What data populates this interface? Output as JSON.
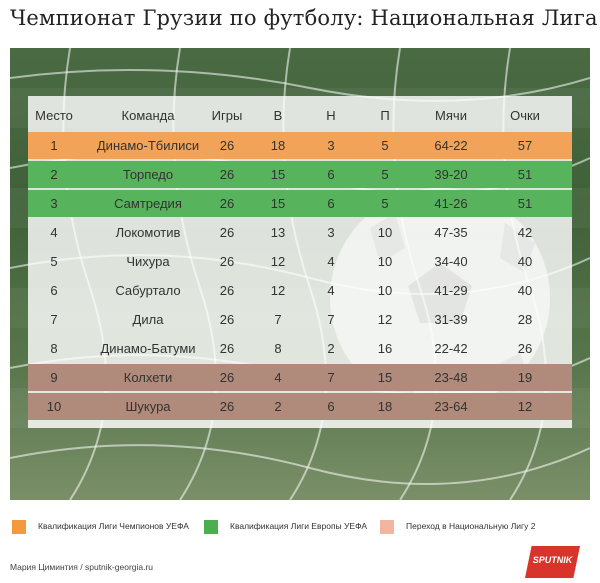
{
  "title": "Чемпионат Грузии по футболу: Национальная Лига",
  "columns": [
    "Место",
    "Команда",
    "Игры",
    "В",
    "Н",
    "П",
    "Мячи",
    "Очки"
  ],
  "rows": [
    {
      "place": "1",
      "team": "Динамо-Тбилиси",
      "games": "26",
      "w": "18",
      "d": "3",
      "l": "5",
      "goals": "64-22",
      "points": "57",
      "zone": "ucl"
    },
    {
      "place": "2",
      "team": "Торпедо",
      "games": "26",
      "w": "15",
      "d": "6",
      "l": "5",
      "goals": "39-20",
      "points": "51",
      "zone": "uel"
    },
    {
      "place": "3",
      "team": "Самтредия",
      "games": "26",
      "w": "15",
      "d": "6",
      "l": "5",
      "goals": "41-26",
      "points": "51",
      "zone": "uel"
    },
    {
      "place": "4",
      "team": "Локомотив",
      "games": "26",
      "w": "13",
      "d": "3",
      "l": "10",
      "goals": "47-35",
      "points": "42",
      "zone": "none"
    },
    {
      "place": "5",
      "team": "Чихура",
      "games": "26",
      "w": "12",
      "d": "4",
      "l": "10",
      "goals": "34-40",
      "points": "40",
      "zone": "none"
    },
    {
      "place": "6",
      "team": "Сабуртало",
      "games": "26",
      "w": "12",
      "d": "4",
      "l": "10",
      "goals": "41-29",
      "points": "40",
      "zone": "none"
    },
    {
      "place": "7",
      "team": "Дила",
      "games": "26",
      "w": "7",
      "d": "7",
      "l": "12",
      "goals": "31-39",
      "points": "28",
      "zone": "none"
    },
    {
      "place": "8",
      "team": "Динамо-Батуми",
      "games": "26",
      "w": "8",
      "d": "2",
      "l": "16",
      "goals": "22-42",
      "points": "26",
      "zone": "none"
    },
    {
      "place": "9",
      "team": "Колхети",
      "games": "26",
      "w": "4",
      "d": "7",
      "l": "15",
      "goals": "23-48",
      "points": "19",
      "zone": "rel"
    },
    {
      "place": "10",
      "team": "Шукура",
      "games": "26",
      "w": "2",
      "d": "6",
      "l": "18",
      "goals": "23-64",
      "points": "12",
      "zone": "rel"
    }
  ],
  "colors": {
    "ucl": "#f2a357",
    "uel": "#57b35c",
    "rel": "#b08a7a",
    "none": "transparent"
  },
  "legend": [
    {
      "label": "Квалификация Лиги Чемпионов УЕФА",
      "color": "#f39a3c"
    },
    {
      "label": "Квалификация Лиги Европы УЕФА",
      "color": "#4cae4f"
    },
    {
      "label": "Переход в Национальную Лигу 2",
      "color": "#f2b6a0"
    }
  ],
  "credit": "Мария Циминтия / sputnik-georgia.ru",
  "logo": "SPUTNIK"
}
